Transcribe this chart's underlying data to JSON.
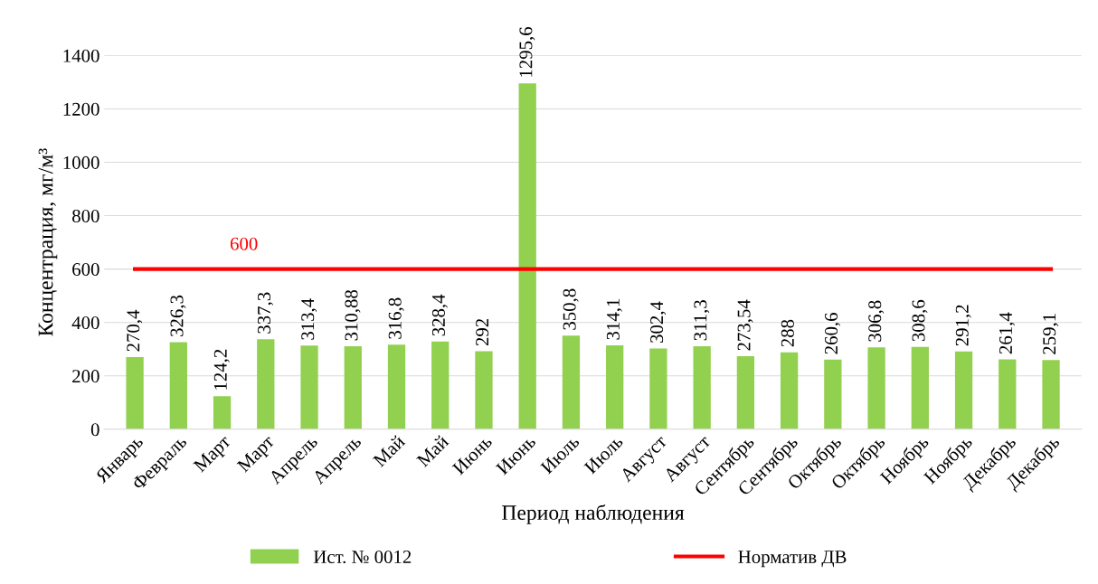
{
  "chart_data": {
    "type": "bar",
    "xlabel": "Период наблюдения",
    "ylabel": "Концентрация, мг/м³",
    "categories": [
      "Январь",
      "Февраль",
      "Март",
      "Март",
      "Апрель",
      "Апрель",
      "Май",
      "Май",
      "Июнь",
      "Июнь",
      "Июль",
      "Июль",
      "Август",
      "Август",
      "Сентябрь",
      "Сентябрь",
      "Октябрь",
      "Октябрь",
      "Ноябрь",
      "Ноябрь",
      "Декабрь",
      "Декабрь"
    ],
    "series": [
      {
        "name": "Ист. № 0012",
        "color": "#92d050",
        "values": [
          270.4,
          326.3,
          124.2,
          337.3,
          313.4,
          310.88,
          316.8,
          328.4,
          292,
          1295.6,
          350.8,
          314.1,
          302.4,
          311.3,
          273.54,
          288,
          260.6,
          306.8,
          308.6,
          291.2,
          261.4,
          259.1
        ],
        "value_labels": [
          "270,4",
          "326,3",
          "124,2",
          "337,3",
          "313,4",
          "310,88",
          "316,8",
          "328,4",
          "292",
          "1295,6",
          "350,8",
          "314,1",
          "302,4",
          "311,3",
          "273,54",
          "288",
          "260,6",
          "306,8",
          "308,6",
          "291,2",
          "261,4",
          "259,1"
        ]
      },
      {
        "name": "Норматив ДВ",
        "type": "line",
        "color": "#ff0000",
        "values": [
          600,
          600,
          600,
          600,
          600,
          600,
          600,
          600,
          600,
          600,
          600,
          600,
          600,
          600,
          600,
          600,
          600,
          600,
          600,
          600,
          600,
          600
        ]
      }
    ],
    "annotations": [
      {
        "text": "600",
        "x": "Март",
        "y": 600
      }
    ],
    "ylim": [
      0,
      1400
    ],
    "yticks": [
      0,
      200,
      400,
      600,
      800,
      1000,
      1200,
      1400
    ],
    "grid": "y",
    "legend": "bottom"
  }
}
